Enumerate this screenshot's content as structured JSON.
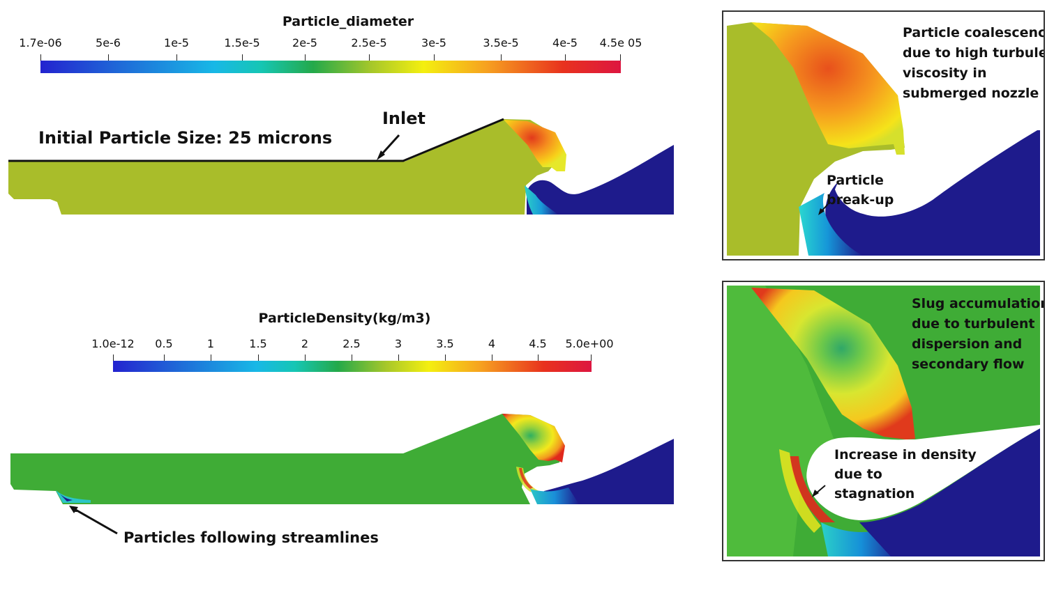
{
  "diameter_colorbar": {
    "title": "Particle_diameter",
    "ticks": [
      "1.7e-06",
      "5e-6",
      "1e-5",
      "1.5e-5",
      "2e-5",
      "2.5e-5",
      "3e-5",
      "3.5e-5",
      "4e-5",
      "4.5e 05"
    ]
  },
  "density_colorbar": {
    "title": "ParticleDensity(kg/m3)",
    "ticks": [
      "1.0e-12",
      "0.5",
      "1",
      "1.5",
      "2",
      "2.5",
      "3",
      "3.5",
      "4",
      "4.5",
      "5.0e+00"
    ]
  },
  "annotations": {
    "initial_size": "Initial Particle Size: 25 microns",
    "inlet": "Inlet",
    "streamlines": "Particles following streamlines"
  },
  "inset_top": {
    "caption_lines": [
      "Particle coalescence",
      "due to high turbulent",
      "viscosity in",
      "submerged nozzle"
    ],
    "breakup_lines": [
      "Particle",
      "break-up"
    ]
  },
  "inset_bottom": {
    "caption_lines": [
      "Slug accumulation",
      "due to turbulent",
      "dispersion and",
      "secondary flow"
    ],
    "density_lines": [
      "Increase in density",
      "due to",
      "stagnation"
    ]
  },
  "colors": {
    "jet_scale": [
      "#2323cf",
      "#1f6bd8",
      "#18b8e6",
      "#16c6b4",
      "#24a94a",
      "#a6c72a",
      "#f4ef10",
      "#f6a020",
      "#e8321e",
      "#dd1640"
    ],
    "bulk_yellowgreen": "#a9bd2a",
    "bulk_green": "#3fac36",
    "water_blue": "#1e1b8c"
  }
}
